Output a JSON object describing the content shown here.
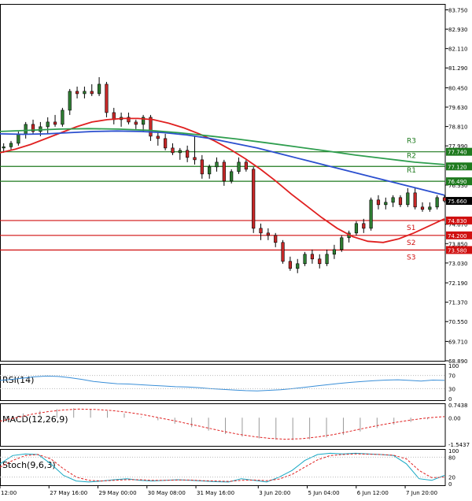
{
  "colors": {
    "background": "#ffffff",
    "grid": "#cccccc",
    "frame": "#000000",
    "candle": "#000000",
    "bull_body": "#2e7d32",
    "bear_body": "#c62828",
    "ma_fast": "#e02020",
    "ma_mid": "#2b4fcf",
    "ma_slow": "#2f9e4f",
    "resistance": "#1e7a1e",
    "support": "#d01010",
    "rsi_line": "#3a8fd8",
    "macd_signal": "#e02020",
    "macd_hist": "#9a9a9a",
    "stoch_main": "#17a8c4",
    "stoch_signal": "#e02020",
    "current_price_tag": "#000000"
  },
  "chart_data": [
    {
      "type": "candlestick",
      "panel": "price",
      "ylim": [
        68.89,
        84.0
      ],
      "y_ticks": [
        "83.750",
        "82.930",
        "82.110",
        "81.290",
        "80.450",
        "79.630",
        "78.810",
        "77.990",
        "76.330",
        "74.670",
        "73.850",
        "73.030",
        "72.190",
        "71.370",
        "70.550",
        "69.710",
        "68.890"
      ],
      "x_tick_labels": [
        "12:00",
        "27 May 16:00",
        "29 May 00:00",
        "30 May 08:00",
        "31 May 16:00",
        "3 Jun 20:00",
        "5 Jun 04:00",
        "6 Jun 12:00",
        "7 Jun 20:00"
      ],
      "x_tick_index": [
        0,
        11,
        22,
        33,
        44,
        58,
        69,
        80,
        91
      ],
      "grid": false,
      "candles": [
        {
          "o": 77.9,
          "h": 78.1,
          "l": 77.7,
          "c": 77.95
        },
        {
          "o": 77.95,
          "h": 78.2,
          "l": 77.8,
          "c": 78.1
        },
        {
          "o": 78.1,
          "h": 78.6,
          "l": 78.0,
          "c": 78.5
        },
        {
          "o": 78.5,
          "h": 79.0,
          "l": 78.3,
          "c": 78.9
        },
        {
          "o": 78.9,
          "h": 79.1,
          "l": 78.5,
          "c": 78.6
        },
        {
          "o": 78.6,
          "h": 79.0,
          "l": 78.4,
          "c": 78.8
        },
        {
          "o": 78.8,
          "h": 79.2,
          "l": 78.5,
          "c": 79.0
        },
        {
          "o": 79.0,
          "h": 79.3,
          "l": 78.8,
          "c": 78.9
        },
        {
          "o": 78.9,
          "h": 79.6,
          "l": 78.8,
          "c": 79.5
        },
        {
          "o": 79.5,
          "h": 80.4,
          "l": 79.3,
          "c": 80.3
        },
        {
          "o": 80.3,
          "h": 80.5,
          "l": 80.0,
          "c": 80.2
        },
        {
          "o": 80.2,
          "h": 80.5,
          "l": 80.0,
          "c": 80.3
        },
        {
          "o": 80.3,
          "h": 80.6,
          "l": 80.1,
          "c": 80.2
        },
        {
          "o": 80.2,
          "h": 80.9,
          "l": 80.1,
          "c": 80.6
        },
        {
          "o": 80.6,
          "h": 80.7,
          "l": 79.2,
          "c": 79.4
        },
        {
          "o": 79.4,
          "h": 79.6,
          "l": 78.9,
          "c": 79.1
        },
        {
          "o": 79.1,
          "h": 79.4,
          "l": 78.8,
          "c": 79.2
        },
        {
          "o": 79.2,
          "h": 79.4,
          "l": 78.9,
          "c": 79.0
        },
        {
          "o": 79.0,
          "h": 79.1,
          "l": 78.7,
          "c": 78.9
        },
        {
          "o": 78.9,
          "h": 79.3,
          "l": 78.6,
          "c": 79.2
        },
        {
          "o": 79.2,
          "h": 79.3,
          "l": 78.2,
          "c": 78.4
        },
        {
          "o": 78.4,
          "h": 78.6,
          "l": 78.0,
          "c": 78.3
        },
        {
          "o": 78.3,
          "h": 78.5,
          "l": 77.8,
          "c": 77.9
        },
        {
          "o": 77.9,
          "h": 78.1,
          "l": 77.6,
          "c": 77.7
        },
        {
          "o": 77.7,
          "h": 77.9,
          "l": 77.4,
          "c": 77.8
        },
        {
          "o": 77.8,
          "h": 78.0,
          "l": 77.3,
          "c": 77.5
        },
        {
          "o": 77.5,
          "h": 78.4,
          "l": 77.2,
          "c": 77.4
        },
        {
          "o": 77.4,
          "h": 77.6,
          "l": 76.6,
          "c": 76.8
        },
        {
          "o": 76.8,
          "h": 77.2,
          "l": 76.6,
          "c": 77.1
        },
        {
          "o": 77.1,
          "h": 77.5,
          "l": 76.9,
          "c": 77.3
        },
        {
          "o": 77.3,
          "h": 77.4,
          "l": 76.3,
          "c": 76.5
        },
        {
          "o": 76.5,
          "h": 77.0,
          "l": 76.4,
          "c": 76.9
        },
        {
          "o": 76.9,
          "h": 77.5,
          "l": 76.8,
          "c": 77.3
        },
        {
          "o": 77.3,
          "h": 77.4,
          "l": 76.9,
          "c": 77.0
        },
        {
          "o": 77.0,
          "h": 77.1,
          "l": 74.3,
          "c": 74.5
        },
        {
          "o": 74.5,
          "h": 74.7,
          "l": 74.0,
          "c": 74.3
        },
        {
          "o": 74.3,
          "h": 74.5,
          "l": 74.0,
          "c": 74.2
        },
        {
          "o": 74.2,
          "h": 74.3,
          "l": 73.7,
          "c": 73.9
        },
        {
          "o": 73.9,
          "h": 74.0,
          "l": 73.0,
          "c": 73.1
        },
        {
          "o": 73.1,
          "h": 73.3,
          "l": 72.7,
          "c": 72.8
        },
        {
          "o": 72.8,
          "h": 73.2,
          "l": 72.6,
          "c": 73.0
        },
        {
          "o": 73.0,
          "h": 73.5,
          "l": 72.9,
          "c": 73.4
        },
        {
          "o": 73.4,
          "h": 73.6,
          "l": 73.0,
          "c": 73.2
        },
        {
          "o": 73.2,
          "h": 73.4,
          "l": 72.8,
          "c": 73.0
        },
        {
          "o": 73.0,
          "h": 73.6,
          "l": 72.9,
          "c": 73.4
        },
        {
          "o": 73.4,
          "h": 73.8,
          "l": 73.2,
          "c": 73.6
        },
        {
          "o": 73.6,
          "h": 74.2,
          "l": 73.5,
          "c": 74.1
        },
        {
          "o": 74.1,
          "h": 74.4,
          "l": 73.9,
          "c": 74.3
        },
        {
          "o": 74.3,
          "h": 74.8,
          "l": 74.2,
          "c": 74.7
        },
        {
          "o": 74.7,
          "h": 74.9,
          "l": 74.3,
          "c": 74.5
        },
        {
          "o": 74.5,
          "h": 75.8,
          "l": 74.4,
          "c": 75.7
        },
        {
          "o": 75.7,
          "h": 75.9,
          "l": 75.3,
          "c": 75.5
        },
        {
          "o": 75.5,
          "h": 75.8,
          "l": 75.3,
          "c": 75.6
        },
        {
          "o": 75.6,
          "h": 75.9,
          "l": 75.4,
          "c": 75.8
        },
        {
          "o": 75.8,
          "h": 75.9,
          "l": 75.4,
          "c": 75.5
        },
        {
          "o": 75.5,
          "h": 76.2,
          "l": 75.4,
          "c": 76.0
        },
        {
          "o": 76.0,
          "h": 76.2,
          "l": 75.3,
          "c": 75.4
        },
        {
          "o": 75.4,
          "h": 75.6,
          "l": 75.2,
          "c": 75.3
        },
        {
          "o": 75.3,
          "h": 75.6,
          "l": 75.2,
          "c": 75.4
        },
        {
          "o": 75.4,
          "h": 75.9,
          "l": 75.3,
          "c": 75.8
        },
        {
          "o": 75.8,
          "h": 75.9,
          "l": 75.6,
          "c": 75.66
        }
      ],
      "series": [
        {
          "color": "#e02020",
          "values": [
            77.7,
            77.85,
            78.05,
            78.3,
            78.55,
            78.8,
            79.0,
            79.1,
            79.15,
            79.15,
            79.1,
            78.95,
            78.75,
            78.5,
            78.2,
            77.85,
            77.45,
            77.0,
            76.5,
            75.95,
            75.45,
            74.95,
            74.5,
            74.15,
            73.95,
            73.9,
            74.05,
            74.3,
            74.6,
            74.9
          ]
        },
        {
          "color": "#2b4fcf",
          "values": [
            78.5,
            78.48,
            78.5,
            78.55,
            78.6,
            78.62,
            78.6,
            78.55,
            78.45,
            78.3,
            78.1,
            77.9,
            77.65,
            77.4,
            77.15,
            76.9,
            76.65,
            76.4,
            76.15,
            75.9
          ]
        },
        {
          "color": "#2f9e4f",
          "values": [
            78.6,
            78.65,
            78.7,
            78.72,
            78.7,
            78.65,
            78.55,
            78.42,
            78.28,
            78.12,
            77.95,
            77.78,
            77.6,
            77.45,
            77.3,
            77.2
          ]
        }
      ],
      "levels": [
        {
          "name": "R3",
          "value": 77.74,
          "label": "77.740"
        },
        {
          "name": "R2",
          "value": 77.12,
          "label": "77.120"
        },
        {
          "name": "R1",
          "value": 76.49,
          "label": "76.490"
        },
        {
          "name": "S1",
          "value": 74.83,
          "label": "74.830"
        },
        {
          "name": "S2",
          "value": 74.2,
          "label": "74.200"
        },
        {
          "name": "S3",
          "value": 73.58,
          "label": "73.580"
        }
      ],
      "current_price": {
        "value": 75.66,
        "label": "75.660"
      }
    },
    {
      "type": "line",
      "panel": "rsi",
      "title": "RSI(14)",
      "ylim": [
        0,
        100
      ],
      "y_ticks": [
        "100",
        "70",
        "30",
        "0"
      ],
      "series": [
        {
          "color": "#3a8fd8",
          "values": [
            55,
            58,
            62,
            66,
            68,
            67,
            63,
            58,
            52,
            48,
            45,
            44,
            42,
            40,
            38,
            36,
            35,
            33,
            30,
            28,
            26,
            24,
            23,
            25,
            27,
            30,
            34,
            38,
            42,
            46,
            49,
            52,
            54,
            56,
            57,
            55,
            53,
            56,
            55
          ]
        }
      ]
    },
    {
      "type": "line",
      "panel": "macd",
      "title": "MACD(12,26,9)",
      "ylim": [
        -1.5437,
        0.7438
      ],
      "y_ticks": [
        "0.7438",
        "0.00",
        "-1.5437"
      ],
      "series": [
        {
          "color": "#e02020",
          "values": [
            -0.2,
            0.0,
            0.2,
            0.35,
            0.45,
            0.5,
            0.48,
            0.42,
            0.32,
            0.18,
            0.0,
            -0.18,
            -0.38,
            -0.58,
            -0.78,
            -0.96,
            -1.1,
            -1.2,
            -1.25,
            -1.22,
            -1.12,
            -0.98,
            -0.8,
            -0.6,
            -0.42,
            -0.26,
            -0.12,
            0.0,
            0.06
          ]
        }
      ],
      "histogram": [
        0.1,
        0.25,
        0.4,
        0.5,
        0.55,
        0.5,
        0.4,
        0.25,
        0.05,
        -0.15,
        -0.35,
        -0.55,
        -0.75,
        -0.95,
        -1.1,
        -1.2,
        -1.28,
        -1.3,
        -1.25,
        -1.15,
        -1.0,
        -0.8,
        -0.6,
        -0.4,
        -0.25,
        -0.1,
        0.0
      ]
    },
    {
      "type": "line",
      "panel": "stoch",
      "title": "Stoch(9,6,3)",
      "ylim": [
        0,
        100
      ],
      "y_ticks": [
        "100",
        "80",
        "20",
        "0"
      ],
      "series": [
        {
          "color": "#17a8c4",
          "values": [
            60,
            85,
            90,
            88,
            60,
            25,
            8,
            5,
            8,
            12,
            15,
            10,
            8,
            10,
            12,
            10,
            8,
            6,
            5,
            15,
            10,
            5,
            20,
            40,
            70,
            88,
            92,
            90,
            92,
            90,
            88,
            85,
            60,
            15,
            10,
            25
          ]
        },
        {
          "color": "#e02020",
          "values": [
            50,
            70,
            85,
            88,
            75,
            45,
            20,
            10,
            8,
            10,
            12,
            12,
            10,
            10,
            11,
            11,
            9,
            8,
            7,
            10,
            11,
            9,
            14,
            28,
            50,
            72,
            85,
            88,
            90,
            89,
            88,
            86,
            75,
            40,
            18,
            20
          ]
        }
      ]
    }
  ]
}
